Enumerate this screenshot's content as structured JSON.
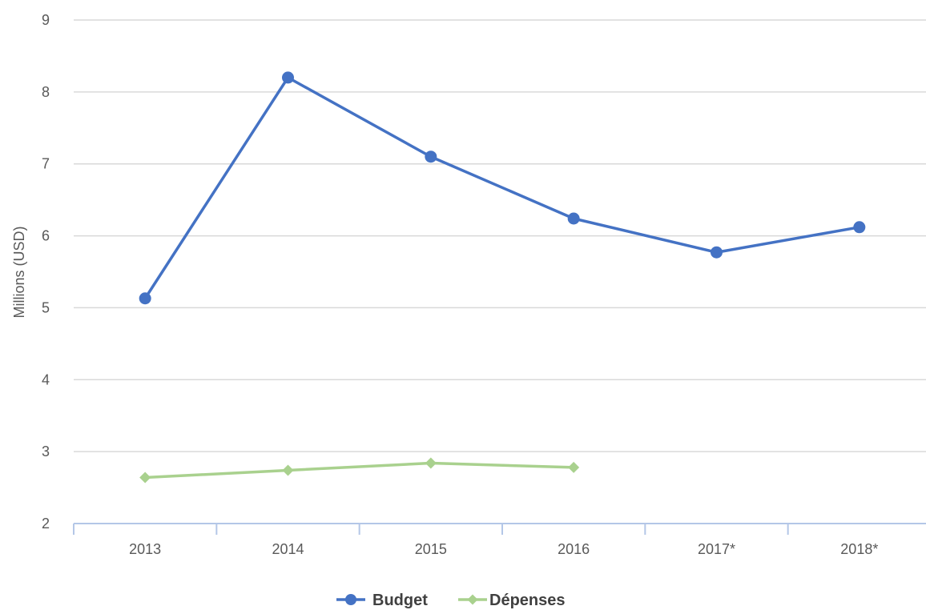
{
  "chart_data": {
    "type": "line",
    "categories": [
      "2013",
      "2014",
      "2015",
      "2016",
      "2017*",
      "2018*"
    ],
    "series": [
      {
        "name": "Budget",
        "values": [
          5.13,
          8.2,
          7.1,
          6.24,
          5.77,
          6.12
        ],
        "color": "#4472c4",
        "marker": "circle"
      },
      {
        "name": "Dépenses",
        "values": [
          2.64,
          2.74,
          2.84,
          2.78,
          null,
          null
        ],
        "color": "#a9d18e",
        "marker": "diamond"
      }
    ],
    "title": "",
    "xlabel": "",
    "ylabel": "Millions (USD)",
    "ylim": [
      2,
      9
    ],
    "yticks": [
      2,
      3,
      4,
      5,
      6,
      7,
      8,
      9
    ],
    "grid": true,
    "legend_position": "bottom"
  }
}
